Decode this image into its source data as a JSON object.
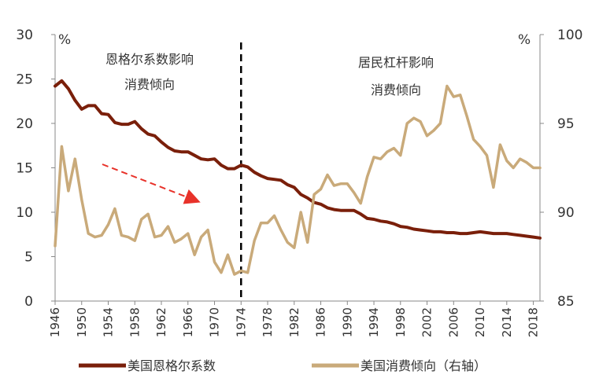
{
  "chart_data": {
    "type": "line",
    "title": "",
    "left_axis": {
      "unit": "%",
      "ylim": [
        0,
        30
      ],
      "ticks": [
        "0",
        "5",
        "10",
        "15",
        "20",
        "25",
        "30"
      ]
    },
    "right_axis": {
      "unit": "%",
      "ylim": [
        85,
        100
      ],
      "ticks": [
        "85",
        "90",
        "95",
        "100"
      ]
    },
    "x_ticks": [
      "1946",
      "1950",
      "1954",
      "1958",
      "1962",
      "1966",
      "1970",
      "1974",
      "1978",
      "1982",
      "1986",
      "1990",
      "1994",
      "1998",
      "2002",
      "2006",
      "2010",
      "2014",
      "2018"
    ],
    "annotations": {
      "left_line1": "恩格尔系数影响",
      "left_line2": "消费倾向",
      "right_line1": "居民杠杆影响",
      "right_line2": "消费倾向"
    },
    "divider_year": 1974,
    "colors": {
      "engel": "#7a1f0a",
      "consumption": "#c9aa7a",
      "arrow": "#e8322a",
      "divider": "#000000",
      "axis": "#888888"
    },
    "series": [
      {
        "name": "美国恩格尔系数",
        "axis": "left",
        "x": [
          1946,
          1947,
          1948,
          1949,
          1950,
          1951,
          1952,
          1953,
          1954,
          1955,
          1956,
          1957,
          1958,
          1959,
          1960,
          1961,
          1962,
          1963,
          1964,
          1965,
          1966,
          1967,
          1968,
          1969,
          1970,
          1971,
          1972,
          1973,
          1974,
          1975,
          1976,
          1977,
          1978,
          1979,
          1980,
          1981,
          1982,
          1983,
          1984,
          1985,
          1986,
          1987,
          1988,
          1989,
          1990,
          1991,
          1992,
          1993,
          1994,
          1995,
          1996,
          1997,
          1998,
          1999,
          2000,
          2001,
          2002,
          2003,
          2004,
          2005,
          2006,
          2007,
          2008,
          2009,
          2010,
          2011,
          2012,
          2013,
          2014,
          2015,
          2016,
          2017,
          2018,
          2019
        ],
        "values": [
          24.2,
          24.8,
          23.9,
          22.6,
          21.6,
          22.0,
          22.0,
          21.1,
          21.0,
          20.1,
          19.9,
          19.9,
          20.2,
          19.4,
          18.8,
          18.6,
          17.9,
          17.3,
          16.9,
          16.8,
          16.8,
          16.4,
          16.0,
          15.9,
          16.0,
          15.3,
          14.9,
          14.9,
          15.3,
          15.1,
          14.5,
          14.1,
          13.8,
          13.7,
          13.6,
          13.1,
          12.8,
          12.0,
          11.6,
          11.1,
          10.9,
          10.5,
          10.3,
          10.2,
          10.2,
          10.2,
          9.8,
          9.3,
          9.2,
          9.0,
          8.9,
          8.7,
          8.4,
          8.3,
          8.1,
          8.0,
          7.9,
          7.8,
          7.8,
          7.7,
          7.7,
          7.6,
          7.6,
          7.7,
          7.8,
          7.7,
          7.6,
          7.6,
          7.6,
          7.5,
          7.4,
          7.3,
          7.2,
          7.1
        ]
      },
      {
        "name": "美国消费倾向（右轴）",
        "axis": "right",
        "x": [
          1946,
          1947,
          1948,
          1949,
          1950,
          1951,
          1952,
          1953,
          1954,
          1955,
          1956,
          1957,
          1958,
          1959,
          1960,
          1961,
          1962,
          1963,
          1964,
          1965,
          1966,
          1967,
          1968,
          1969,
          1970,
          1971,
          1972,
          1973,
          1974,
          1975,
          1976,
          1977,
          1978,
          1979,
          1980,
          1981,
          1982,
          1983,
          1984,
          1985,
          1986,
          1987,
          1988,
          1989,
          1990,
          1991,
          1992,
          1993,
          1994,
          1995,
          1996,
          1997,
          1998,
          1999,
          2000,
          2001,
          2002,
          2003,
          2004,
          2005,
          2006,
          2007,
          2008,
          2009,
          2010,
          2011,
          2012,
          2013,
          2014,
          2015,
          2016,
          2017,
          2018,
          2019
        ],
        "values": [
          88.1,
          93.7,
          91.2,
          93.0,
          90.7,
          88.8,
          88.6,
          88.7,
          89.3,
          90.2,
          88.7,
          88.6,
          88.4,
          89.6,
          89.9,
          88.6,
          88.7,
          89.2,
          88.3,
          88.5,
          88.8,
          87.6,
          88.6,
          89.0,
          87.2,
          86.6,
          87.6,
          86.5,
          86.7,
          86.6,
          88.4,
          89.4,
          89.4,
          89.8,
          89.0,
          88.3,
          88.0,
          90.0,
          88.3,
          91.0,
          91.3,
          92.1,
          91.5,
          91.6,
          91.6,
          91.1,
          90.5,
          92.0,
          93.1,
          93.0,
          93.4,
          93.6,
          93.2,
          95.0,
          95.3,
          95.1,
          94.3,
          94.6,
          95.0,
          97.1,
          96.5,
          96.6,
          95.4,
          94.1,
          93.7,
          93.2,
          91.4,
          93.8,
          92.9,
          92.5,
          93.0,
          92.8,
          92.5,
          92.5
        ]
      }
    ]
  },
  "legend": [
    {
      "label": "美国恩格尔系数"
    },
    {
      "label": "美国消费倾向（右轴）"
    }
  ]
}
